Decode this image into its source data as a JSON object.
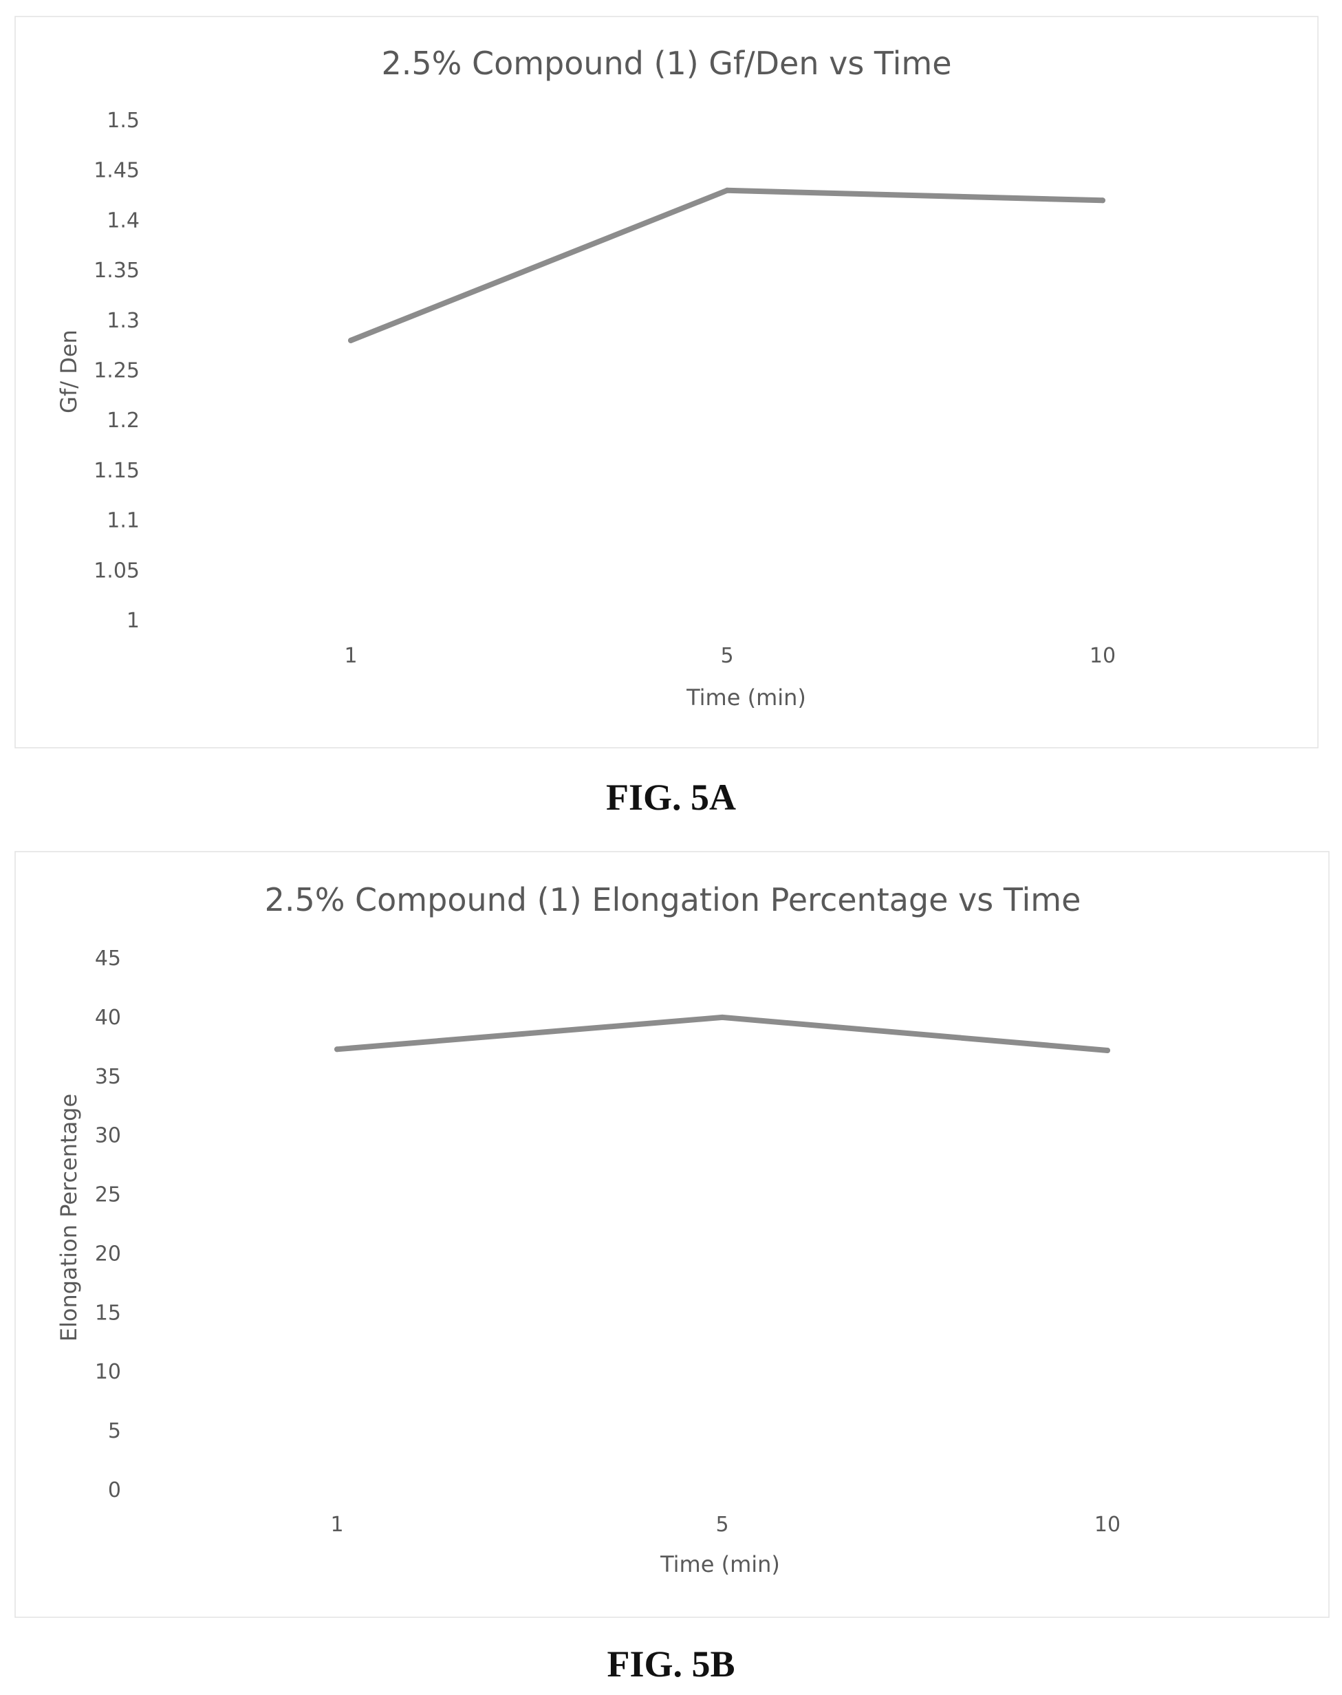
{
  "chart_data": [
    {
      "type": "line",
      "title": "2.5% Compound (1) Gf/Den vs Time",
      "xlabel": "Time (min)",
      "ylabel": "Gf/ Den",
      "categories": [
        "1",
        "5",
        "10"
      ],
      "series": [
        {
          "values": [
            1.28,
            1.43,
            1.42
          ]
        }
      ],
      "ylim": [
        1,
        1.5
      ],
      "yticks": [
        "1",
        "1.05",
        "1.1",
        "1.15",
        "1.2",
        "1.25",
        "1.3",
        "1.35",
        "1.4",
        "1.45",
        "1.5"
      ],
      "grid": false,
      "legend": "none",
      "line_color": "#8c8c8c"
    },
    {
      "type": "line",
      "title": "2.5% Compound (1) Elongation Percentage vs Time",
      "xlabel": "Time (min)",
      "ylabel": "Elongation Percentage",
      "categories": [
        "1",
        "5",
        "10"
      ],
      "series": [
        {
          "values": [
            37.3,
            40,
            37.2
          ]
        }
      ],
      "ylim": [
        0,
        45
      ],
      "yticks": [
        "0",
        "5",
        "10",
        "15",
        "20",
        "25",
        "30",
        "35",
        "40",
        "45"
      ],
      "grid": false,
      "legend": "none",
      "line_color": "#8c8c8c"
    }
  ],
  "captions": {
    "fig_a": "FIG. 5A",
    "fig_b": "FIG. 5B"
  }
}
